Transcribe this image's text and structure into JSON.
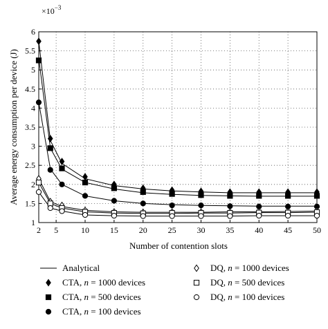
{
  "chart_data": {
    "type": "line",
    "xlabel": "Number of contention slots",
    "ylabel": "Average energy consumption per device (J)",
    "y_scale_label": "×10",
    "y_scale_exponent": "−3",
    "xlim": [
      2,
      50
    ],
    "ylim": [
      1,
      6
    ],
    "x_ticks": [
      2,
      5,
      10,
      15,
      20,
      25,
      30,
      35,
      40,
      45,
      50
    ],
    "y_ticks": [
      1,
      1.5,
      2,
      2.5,
      3,
      3.5,
      4,
      4.5,
      5,
      5.5,
      6
    ],
    "y_tick_labels": [
      "1",
      "1.5",
      "2",
      "2.5",
      "3",
      "3.5",
      "4",
      "4.5",
      "5",
      "5.5",
      "6"
    ],
    "grid": true,
    "legend_position": "below",
    "analytical_label": "Analytical",
    "series": [
      {
        "name": "CTA, n = 1000 devices",
        "marker": "diamond-filled",
        "x": [
          2,
          4,
          6,
          10,
          15,
          20,
          25,
          30,
          35,
          40,
          45,
          50
        ],
        "y": [
          5.75,
          3.2,
          2.6,
          2.2,
          2.0,
          1.9,
          1.85,
          1.82,
          1.8,
          1.8,
          1.8,
          1.8
        ],
        "analytical_y": [
          5.75,
          3.15,
          2.55,
          2.15,
          1.97,
          1.88,
          1.83,
          1.8,
          1.78,
          1.78,
          1.78,
          1.78
        ]
      },
      {
        "name": "CTA, n = 500 devices",
        "marker": "square-filled",
        "x": [
          2,
          4,
          6,
          10,
          15,
          20,
          25,
          30,
          35,
          40,
          45,
          50
        ],
        "y": [
          5.25,
          2.95,
          2.42,
          2.05,
          1.9,
          1.8,
          1.75,
          1.72,
          1.7,
          1.7,
          1.7,
          1.7
        ],
        "analytical_y": [
          5.3,
          2.95,
          2.4,
          2.05,
          1.88,
          1.78,
          1.74,
          1.71,
          1.7,
          1.69,
          1.69,
          1.69
        ]
      },
      {
        "name": "CTA, n = 100 devices",
        "marker": "circle-filled",
        "x": [
          2,
          4,
          6,
          10,
          15,
          20,
          25,
          30,
          35,
          40,
          45,
          50
        ],
        "y": [
          4.15,
          2.38,
          2.0,
          1.7,
          1.57,
          1.5,
          1.45,
          1.45,
          1.43,
          1.42,
          1.42,
          1.42
        ],
        "analytical_y": [
          4.15,
          2.4,
          2.0,
          1.7,
          1.57,
          1.5,
          1.47,
          1.45,
          1.44,
          1.43,
          1.43,
          1.43
        ]
      },
      {
        "name": "DQ, n = 1000 devices",
        "marker": "diamond-open",
        "x": [
          2,
          4,
          6,
          10,
          15,
          20,
          25,
          30,
          35,
          40,
          45,
          50
        ],
        "y": [
          2.15,
          1.55,
          1.45,
          1.32,
          1.28,
          1.27,
          1.28,
          1.28,
          1.28,
          1.29,
          1.29,
          1.3
        ],
        "analytical_y": [
          2.15,
          1.55,
          1.42,
          1.32,
          1.28,
          1.27,
          1.27,
          1.27,
          1.28,
          1.28,
          1.29,
          1.3
        ]
      },
      {
        "name": "DQ, n = 500 devices",
        "marker": "square-open",
        "x": [
          2,
          4,
          6,
          10,
          15,
          20,
          25,
          30,
          35,
          40,
          45,
          50
        ],
        "y": [
          2.05,
          1.5,
          1.38,
          1.28,
          1.25,
          1.24,
          1.25,
          1.25,
          1.25,
          1.26,
          1.26,
          1.27
        ],
        "analytical_y": [
          2.05,
          1.5,
          1.38,
          1.28,
          1.25,
          1.24,
          1.24,
          1.25,
          1.25,
          1.26,
          1.26,
          1.27
        ]
      },
      {
        "name": "DQ, n = 100 devices",
        "marker": "circle-open",
        "x": [
          2,
          4,
          6,
          10,
          15,
          20,
          25,
          30,
          35,
          40,
          45,
          50
        ],
        "y": [
          1.8,
          1.38,
          1.3,
          1.2,
          1.18,
          1.17,
          1.17,
          1.17,
          1.17,
          1.18,
          1.18,
          1.18
        ],
        "analytical_y": [
          1.8,
          1.38,
          1.3,
          1.2,
          1.18,
          1.17,
          1.17,
          1.17,
          1.17,
          1.18,
          1.18,
          1.18
        ]
      }
    ],
    "legend_entries": [
      {
        "key": "analytical",
        "prefix": "Analytical",
        "n": "",
        "suffix": ""
      },
      {
        "key": "cta1000",
        "prefix": "CTA, ",
        "n": "n",
        "suffix": " = 1000 devices"
      },
      {
        "key": "cta500",
        "prefix": "CTA, ",
        "n": "n",
        "suffix": " = 500 devices"
      },
      {
        "key": "cta100",
        "prefix": "CTA, ",
        "n": "n",
        "suffix": " = 100 devices"
      },
      {
        "key": "dq1000",
        "prefix": "DQ, ",
        "n": "n",
        "suffix": " = 1000 devices"
      },
      {
        "key": "dq500",
        "prefix": "DQ, ",
        "n": "n",
        "suffix": " = 500 devices"
      },
      {
        "key": "dq100",
        "prefix": "DQ, ",
        "n": "n",
        "suffix": " = 100 devices"
      }
    ]
  }
}
